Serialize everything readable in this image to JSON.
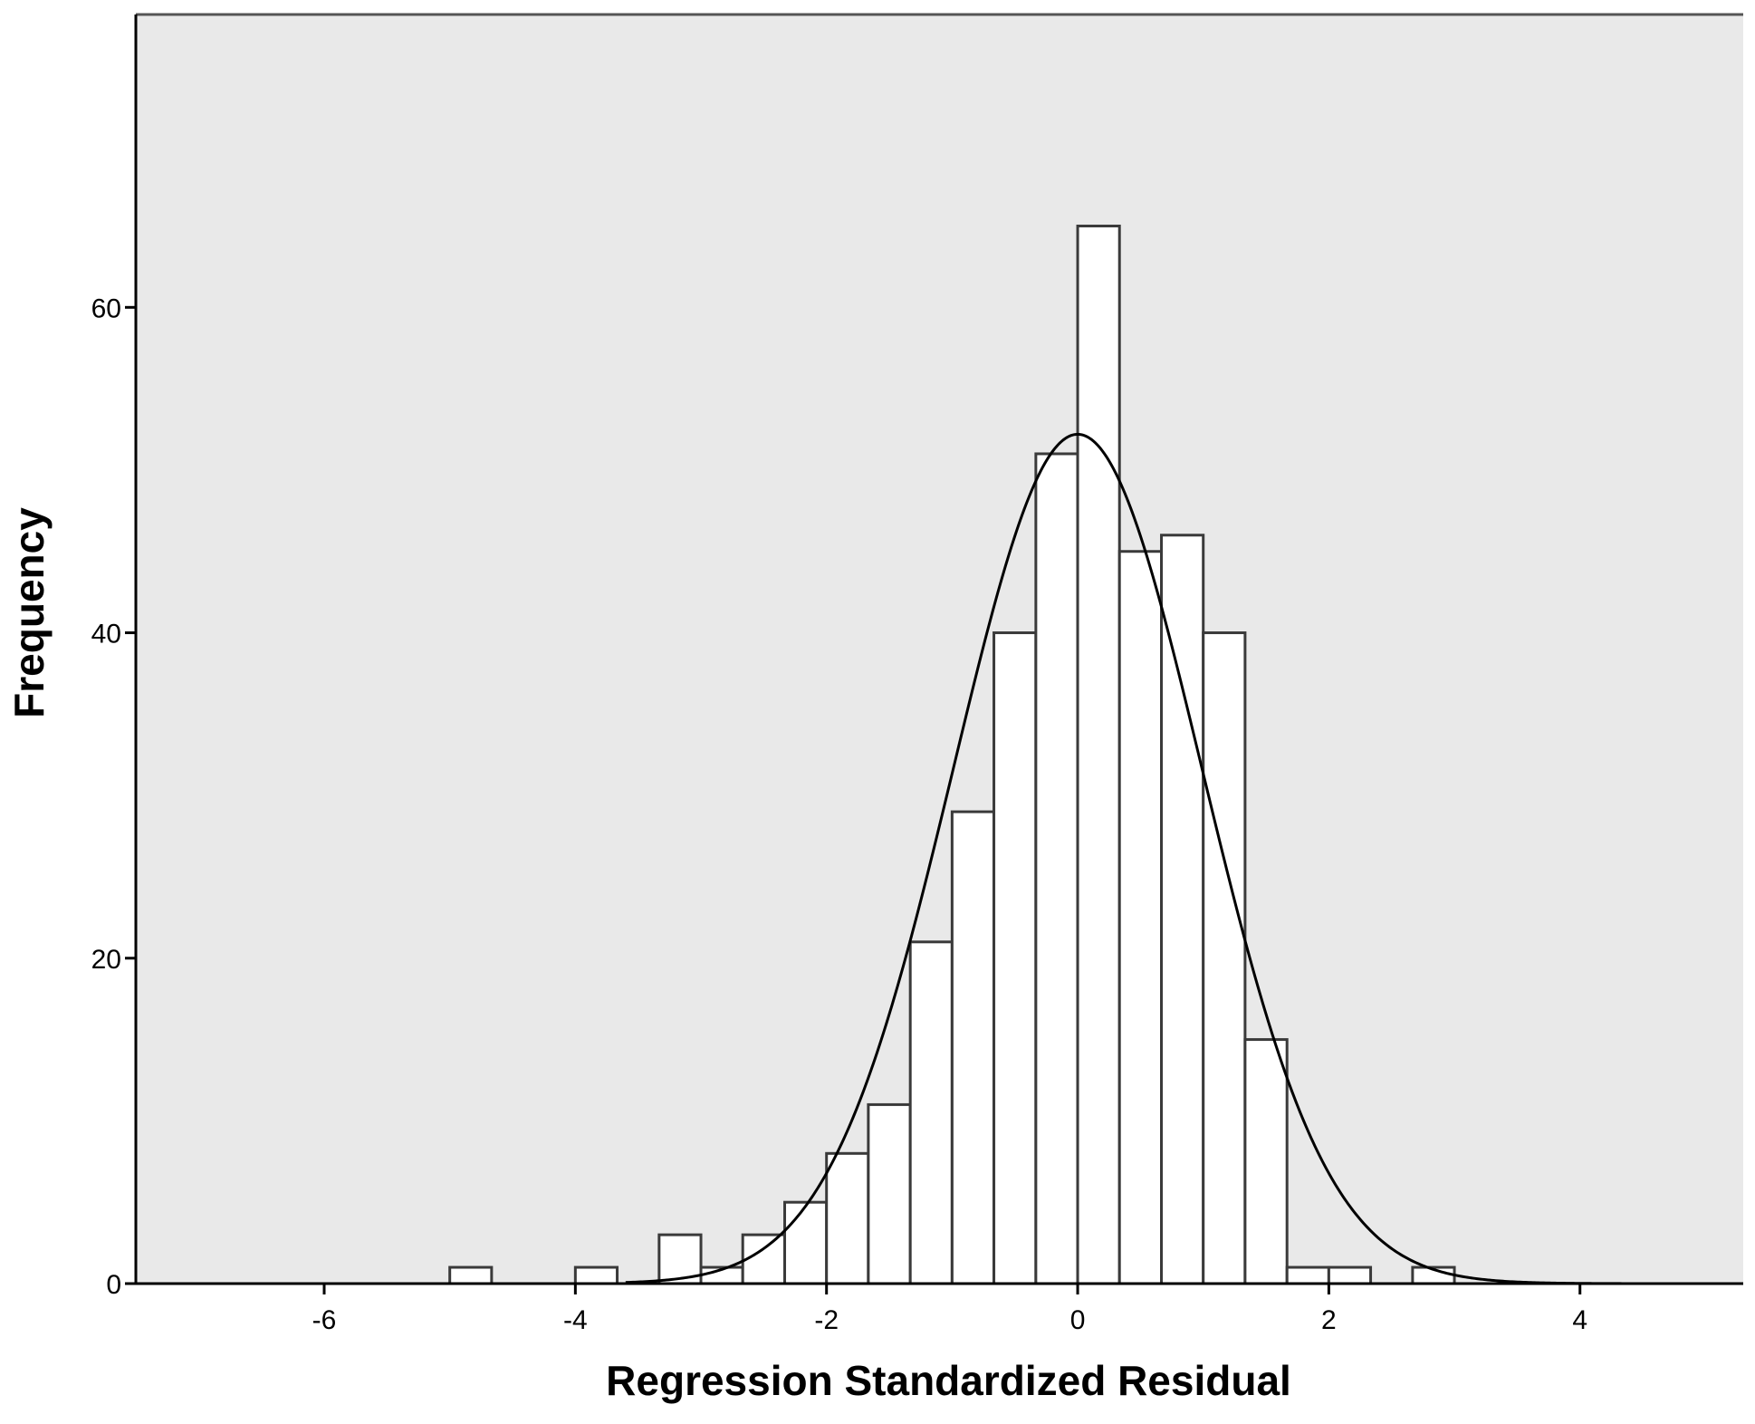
{
  "chart_data": {
    "type": "bar",
    "subtype": "histogram",
    "xlabel": "Regression Standardized Residual",
    "ylabel": "Frequency",
    "xlim": [
      -7.5,
      5.3
    ],
    "ylim": [
      0,
      78
    ],
    "x_ticks": [
      -6,
      -4,
      -2,
      0,
      2,
      4
    ],
    "y_ticks": [
      0,
      20,
      40,
      60
    ],
    "bin_width": 0.333,
    "bins": [
      {
        "x0": -5.0,
        "x1": -4.667,
        "count": 1
      },
      {
        "x0": -4.0,
        "x1": -3.667,
        "count": 1
      },
      {
        "x0": -3.333,
        "x1": -3.0,
        "count": 3
      },
      {
        "x0": -3.0,
        "x1": -2.667,
        "count": 1
      },
      {
        "x0": -2.667,
        "x1": -2.333,
        "count": 3
      },
      {
        "x0": -2.333,
        "x1": -2.0,
        "count": 5
      },
      {
        "x0": -2.0,
        "x1": -1.667,
        "count": 8
      },
      {
        "x0": -1.667,
        "x1": -1.333,
        "count": 11
      },
      {
        "x0": -1.333,
        "x1": -1.0,
        "count": 21
      },
      {
        "x0": -1.0,
        "x1": -0.667,
        "count": 29
      },
      {
        "x0": -0.667,
        "x1": -0.333,
        "count": 40
      },
      {
        "x0": -0.333,
        "x1": 0.0,
        "count": 51
      },
      {
        "x0": 0.0,
        "x1": 0.333,
        "count": 65
      },
      {
        "x0": 0.333,
        "x1": 0.667,
        "count": 45
      },
      {
        "x0": 0.667,
        "x1": 1.0,
        "count": 46
      },
      {
        "x0": 1.0,
        "x1": 1.333,
        "count": 40
      },
      {
        "x0": 1.333,
        "x1": 1.667,
        "count": 15
      },
      {
        "x0": 1.667,
        "x1": 2.0,
        "count": 1
      },
      {
        "x0": 2.0,
        "x1": 2.333,
        "count": 1
      },
      {
        "x0": 2.667,
        "x1": 3.0,
        "count": 1
      }
    ],
    "normal_curve": {
      "mean": 0.0,
      "std_dev": 0.99,
      "peak": 52.2
    },
    "grid": false,
    "legend": "none",
    "colors": {
      "plot_background": "#e9e9e9",
      "bar_fill": "#ffffff",
      "bar_stroke": "#3a3a3a",
      "curve": "#000000",
      "axis": "#000000"
    }
  }
}
